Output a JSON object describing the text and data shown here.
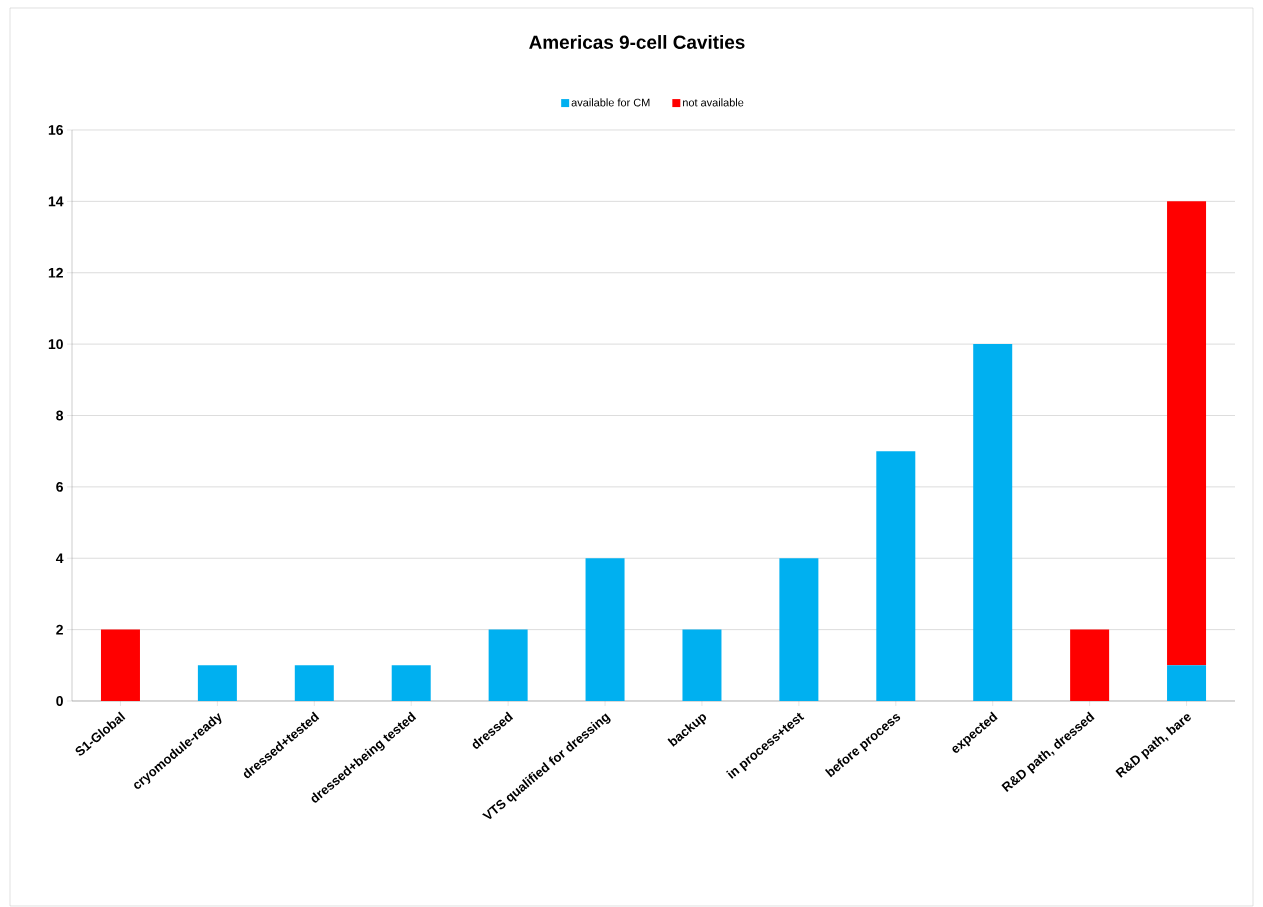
{
  "chart_data": {
    "type": "bar",
    "title": "Americas 9-cell Cavities",
    "stacked": true,
    "categories": [
      "S1-Global",
      "cryomodule-ready",
      "dressed+tested",
      "dressed+being tested",
      "dressed",
      "VTS qualified for dressing",
      "backup",
      "in process+test",
      "before process",
      "expected",
      "R&D path, dressed",
      "R&D path, bare"
    ],
    "series": [
      {
        "name": "available for CM",
        "color": "#00b0f0",
        "values": [
          null,
          1,
          1,
          1,
          2,
          4,
          2,
          4,
          7,
          10,
          null,
          1
        ]
      },
      {
        "name": "not available",
        "color": "#ff0000",
        "values": [
          2,
          null,
          null,
          null,
          null,
          null,
          null,
          null,
          null,
          null,
          2,
          13
        ]
      }
    ],
    "ylim": [
      0,
      16
    ],
    "yticks": [
      0,
      2,
      4,
      6,
      8,
      10,
      12,
      14,
      16
    ],
    "grid": "y",
    "legend": "top"
  }
}
